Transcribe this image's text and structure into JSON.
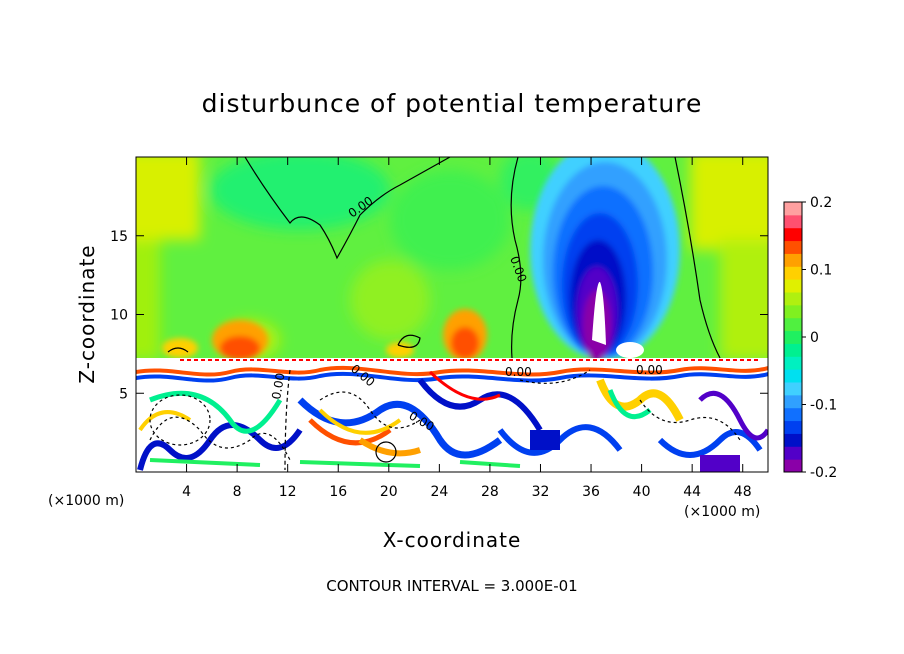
{
  "chart_data": {
    "type": "heatmap",
    "title": "disturbunce of potential temperature",
    "xlabel": "X-coordinate",
    "ylabel": "Z-coordinate",
    "x_unit": "(×1000 m)",
    "x_unit_right": "(×1000 m)",
    "xlim": [
      0,
      50
    ],
    "ylim": [
      0,
      20
    ],
    "x_ticks": [
      4,
      8,
      12,
      16,
      20,
      24,
      28,
      32,
      36,
      40,
      44,
      48
    ],
    "y_ticks": [
      5,
      10,
      15
    ],
    "colorbar": {
      "range": [
        -0.2,
        0.2
      ],
      "ticks": [
        {
          "value": 0.2,
          "label": "0.2"
        },
        {
          "value": 0.1,
          "label": "0.1"
        },
        {
          "value": 0.0,
          "label": "0"
        },
        {
          "value": -0.1,
          "label": "-0.1"
        },
        {
          "value": -0.2,
          "label": "-0.2"
        }
      ],
      "colors": [
        "#8a00a8",
        "#5200c8",
        "#0010c8",
        "#0040f0",
        "#1070ff",
        "#30a0ff",
        "#40d0ff",
        "#00e0f0",
        "#00f0c0",
        "#00f090",
        "#20f060",
        "#50f040",
        "#80f020",
        "#b0f010",
        "#e0f000",
        "#ffd000",
        "#ffa000",
        "#ff5000",
        "#ff0000",
        "#ff5070",
        "#ffa0a0"
      ]
    },
    "contour_labels": [
      "0.00",
      "0.00",
      "0.00",
      "0.00",
      "0.00",
      "0.00",
      "0.00"
    ],
    "contour_interval_text": "CONTOUR INTERVAL = 3.000E-01"
  }
}
